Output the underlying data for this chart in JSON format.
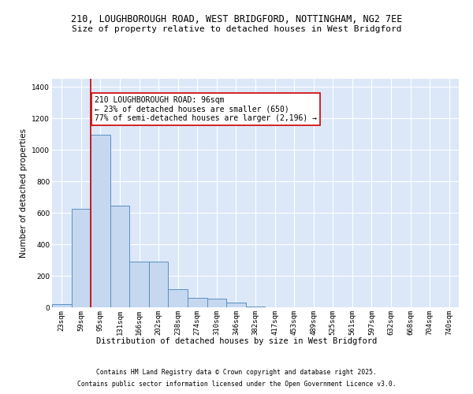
{
  "title_line1": "210, LOUGHBOROUGH ROAD, WEST BRIDGFORD, NOTTINGHAM, NG2 7EE",
  "title_line2": "Size of property relative to detached houses in West Bridgford",
  "xlabel": "Distribution of detached houses by size in West Bridgford",
  "ylabel": "Number of detached properties",
  "categories": [
    "23sqm",
    "59sqm",
    "95sqm",
    "131sqm",
    "166sqm",
    "202sqm",
    "238sqm",
    "274sqm",
    "310sqm",
    "346sqm",
    "382sqm",
    "417sqm",
    "453sqm",
    "489sqm",
    "525sqm",
    "561sqm",
    "597sqm",
    "632sqm",
    "668sqm",
    "704sqm",
    "740sqm"
  ],
  "bar_values": [
    20,
    625,
    1095,
    645,
    290,
    290,
    115,
    60,
    55,
    30,
    5,
    0,
    0,
    0,
    0,
    0,
    0,
    0,
    0,
    0,
    0
  ],
  "bar_color": "#c5d8f0",
  "bar_edge_color": "#5a8fc0",
  "background_color": "#dce8f8",
  "fig_background": "#ffffff",
  "grid_color": "#ffffff",
  "vline_color": "#cc0000",
  "vline_x_index": 2,
  "annotation_text_line1": "210 LOUGHBOROUGH ROAD: 96sqm",
  "annotation_text_line2": "← 23% of detached houses are smaller (650)",
  "annotation_text_line3": "77% of semi-detached houses are larger (2,196) →",
  "annotation_box_color": "#ffffff",
  "annotation_box_edge": "#cc0000",
  "ylim": [
    0,
    1450
  ],
  "yticks": [
    0,
    200,
    400,
    600,
    800,
    1000,
    1200,
    1400
  ],
  "footnote_line1": "Contains HM Land Registry data © Crown copyright and database right 2025.",
  "footnote_line2": "Contains public sector information licensed under the Open Government Licence v3.0.",
  "title_fontsize": 8.5,
  "subtitle_fontsize": 8,
  "tick_fontsize": 6.5,
  "ylabel_fontsize": 7.5,
  "xlabel_fontsize": 7.5,
  "annotation_fontsize": 7,
  "footnote_fontsize": 5.8
}
